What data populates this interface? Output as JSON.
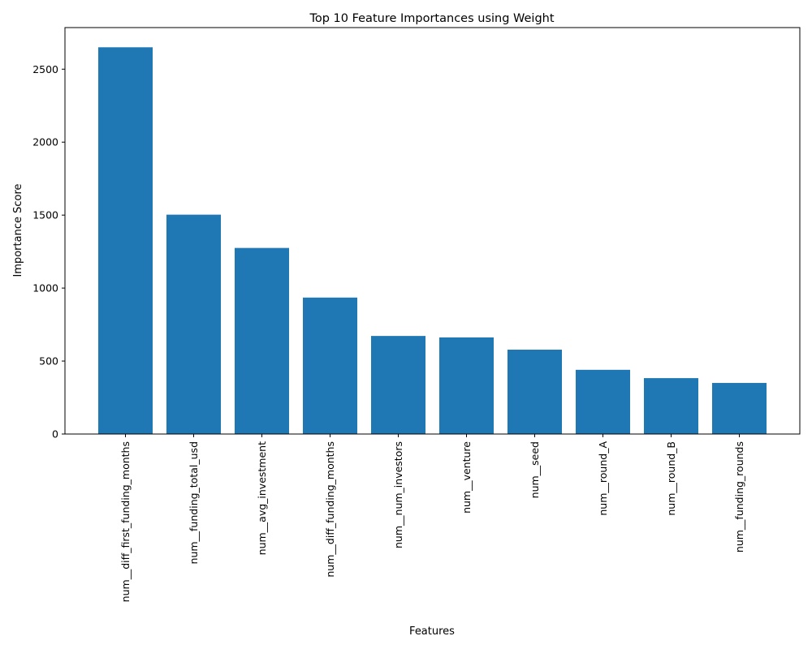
{
  "chart_data": {
    "type": "bar",
    "title": "Top 10 Feature Importances using Weight",
    "xlabel": "Features",
    "ylabel": "Importance Score",
    "categories": [
      "num__diff_first_funding_months",
      "num__funding_total_usd",
      "num__avg_investment",
      "num__diff_funding_months",
      "num__num_investors",
      "num__venture",
      "num__seed",
      "num__round_A",
      "num__round_B",
      "num__funding_rounds"
    ],
    "values": [
      2650,
      1503,
      1275,
      935,
      672,
      662,
      578,
      440,
      383,
      350
    ],
    "ylim": [
      0,
      2785
    ],
    "yticks": [
      0,
      500,
      1000,
      1500,
      2000,
      2500
    ],
    "bar_color": "#1f77b4",
    "grid": false,
    "legend": "none"
  }
}
